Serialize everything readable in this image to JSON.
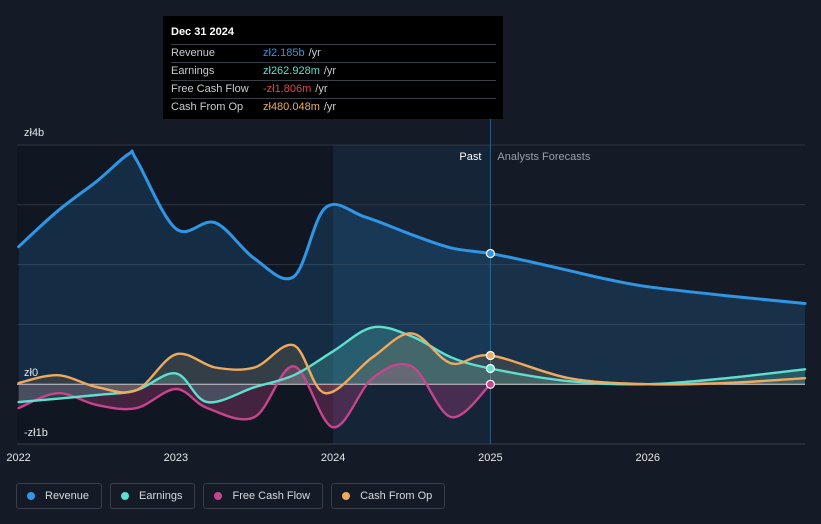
{
  "chart_data": {
    "type": "line",
    "currency_axis": [
      "zł4b",
      "zł0",
      "-zł1b"
    ],
    "y_values_axis": [
      4,
      0,
      -1
    ],
    "ylim": [
      -1,
      4
    ],
    "x_tick_labels": [
      "2022",
      "2023",
      "2024",
      "2025",
      "2026"
    ],
    "x_tick_values": [
      2022,
      2023,
      2024,
      2025,
      2026
    ],
    "xlim": [
      2021.99,
      2027.0
    ],
    "past_label": "Past",
    "forecast_label": "Analysts Forecasts",
    "divider_x": 2025.0,
    "highlight_start_x": 2024.0,
    "series": [
      {
        "name": "Revenue",
        "color": "#2f96e6",
        "x": [
          2022.0,
          2022.25,
          2022.5,
          2022.7,
          2022.75,
          2023.0,
          2023.25,
          2023.5,
          2023.75,
          2023.95,
          2024.2,
          2024.5,
          2024.75,
          2025.0,
          2025.25,
          2025.5,
          2025.75,
          2026.0,
          2026.5,
          2027.0
        ],
        "values": [
          2.3,
          2.9,
          3.4,
          3.85,
          3.75,
          2.6,
          2.7,
          2.1,
          1.8,
          2.95,
          2.8,
          2.5,
          2.28,
          2.185,
          2.05,
          1.9,
          1.75,
          1.63,
          1.48,
          1.35
        ]
      },
      {
        "name": "Earnings",
        "color": "#5fe0cf",
        "x": [
          2022.0,
          2022.5,
          2022.75,
          2023.0,
          2023.2,
          2023.5,
          2023.75,
          2024.0,
          2024.25,
          2024.5,
          2024.75,
          2025.0,
          2025.5,
          2026.0,
          2026.5,
          2027.0
        ],
        "values": [
          -0.3,
          -0.18,
          -0.1,
          0.18,
          -0.3,
          -0.05,
          0.15,
          0.55,
          0.95,
          0.8,
          0.45,
          0.263,
          0.05,
          0.0,
          0.1,
          0.25
        ]
      },
      {
        "name": "Free Cash Flow",
        "color": "#c8448e",
        "x": [
          2022.0,
          2022.25,
          2022.5,
          2022.75,
          2023.0,
          2023.2,
          2023.5,
          2023.75,
          2024.0,
          2024.25,
          2024.5,
          2024.75,
          2025.0
        ],
        "values": [
          -0.4,
          -0.15,
          -0.35,
          -0.4,
          -0.08,
          -0.4,
          -0.55,
          0.3,
          -0.72,
          0.1,
          0.3,
          -0.55,
          -0.0018
        ]
      },
      {
        "name": "Cash From Op",
        "color": "#f0aa5e",
        "x": [
          2022.0,
          2022.25,
          2022.5,
          2022.75,
          2023.0,
          2023.25,
          2023.5,
          2023.75,
          2023.95,
          2024.25,
          2024.5,
          2024.75,
          2025.0,
          2025.5,
          2026.0,
          2026.5,
          2027.0
        ],
        "values": [
          0.02,
          0.15,
          -0.05,
          -0.1,
          0.5,
          0.28,
          0.28,
          0.65,
          -0.15,
          0.45,
          0.85,
          0.35,
          0.48,
          0.1,
          0.0,
          0.02,
          0.1
        ]
      }
    ],
    "markers_x": 2025.0
  },
  "tooltip": {
    "date": "Dec 31 2024",
    "rows": [
      {
        "label": "Revenue",
        "value": "zł2.185b",
        "unit": "/yr",
        "color": "#2f96e6"
      },
      {
        "label": "Earnings",
        "value": "zł262.928m",
        "unit": "/yr",
        "color": "#5fe0cf"
      },
      {
        "label": "Free Cash Flow",
        "value": "-zł1.806m",
        "unit": "/yr",
        "color": "#e0474c"
      },
      {
        "label": "Cash From Op",
        "value": "zł480.048m",
        "unit": "/yr",
        "color": "#f0aa5e"
      }
    ]
  },
  "legend": [
    {
      "label": "Revenue",
      "color": "#2f96e6"
    },
    {
      "label": "Earnings",
      "color": "#5fe0cf"
    },
    {
      "label": "Free Cash Flow",
      "color": "#c8448e"
    },
    {
      "label": "Cash From Op",
      "color": "#f0aa5e"
    }
  ]
}
